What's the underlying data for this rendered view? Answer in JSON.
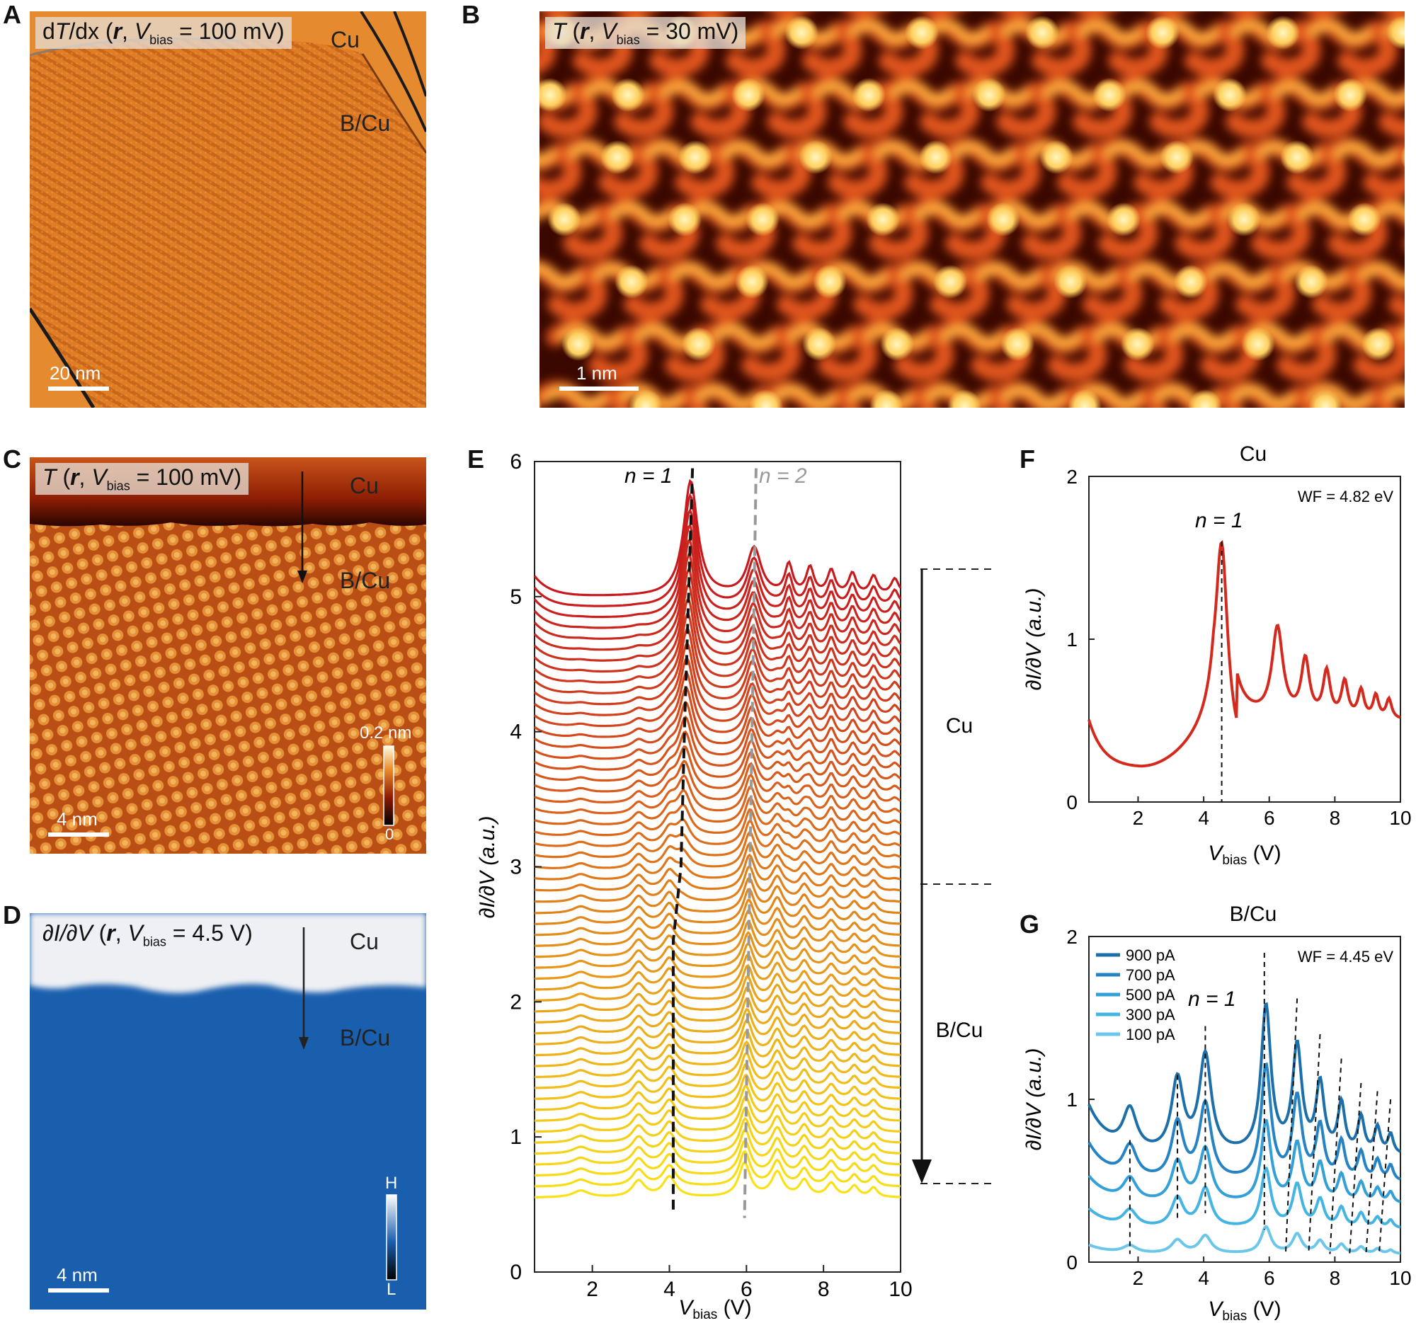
{
  "panel_labels": {
    "A": "A",
    "B": "B",
    "C": "C",
    "D": "D",
    "E": "E",
    "F": "F",
    "G": "G"
  },
  "panelA": {
    "title": "dT/dx (r, Vbias = 100 mV)",
    "t1": "d",
    "t2": "T",
    "t3": "/dx (",
    "t4": "r",
    "t5": ", ",
    "t6": "V",
    "t7": "bias",
    "t8": " = 100 mV)",
    "label_cu": "Cu",
    "label_bcu": "B/Cu",
    "scale": "20 nm",
    "colors": {
      "base": "#e07d24",
      "stripe": "#c86314"
    }
  },
  "panelB": {
    "t1": "T",
    "t2": " (",
    "t3": "r",
    "t4": ", ",
    "t5": "V",
    "t6": "bias",
    "t7": " = 30 mV)",
    "scale": "1 nm",
    "colors": {
      "dark": "#2a0500",
      "mid": "#c2350c",
      "light": "#ffe58a"
    }
  },
  "panelC": {
    "t1": "T",
    "t2": " (",
    "t3": "r",
    "t4": ", ",
    "t5": "V",
    "t6": "bias",
    "t7": " = 100 mV)",
    "label_cu": "Cu",
    "label_bcu": "B/Cu",
    "scale": "4 nm",
    "cbar_top": "0.2 nm",
    "cbar_bottom": "0"
  },
  "panelD": {
    "t1": "∂I/∂V",
    "t2": " (",
    "t3": "r",
    "t4": ", ",
    "t5": "V",
    "t6": "bias",
    "t7": " = 4.5 V)",
    "label_cu": "Cu",
    "label_bcu": "B/Cu",
    "scale": "4 nm",
    "cbar_top": "H",
    "cbar_bottom": "L",
    "colors": {
      "cu": "#eef0f4",
      "bcu": "#1a5fae"
    }
  },
  "panelE": {
    "ylabel": "∂I/∂V (a.u.)",
    "xlabel_v": "V",
    "xlabel_sub": "bias",
    "xlabel_unit": " (V)",
    "n1": "n = 1",
    "n2": "n = 2",
    "region_cu": "Cu",
    "region_bcu": "B/Cu",
    "xticks": [
      2,
      4,
      6,
      8,
      10
    ],
    "yticks": [
      0,
      1,
      2,
      3,
      4,
      5,
      6
    ]
  },
  "panelF": {
    "title": "Cu",
    "wf": "WF = 4.82 eV",
    "n1": "n = 1",
    "ylabel": "∂I/∂V (a.u.)",
    "xlabel_v": "V",
    "xlabel_sub": "bias",
    "xlabel_unit": " (V)",
    "xticks": [
      2,
      4,
      6,
      8,
      10
    ],
    "yticks": [
      0,
      1,
      2
    ]
  },
  "panelG": {
    "title": "B/Cu",
    "wf": "WF = 4.45 eV",
    "n1": "n = 1",
    "ylabel": "∂I/∂V (a.u.)",
    "xlabel_v": "V",
    "xlabel_sub": "bias",
    "xlabel_unit": " (V)",
    "xticks": [
      2,
      4,
      6,
      8,
      10
    ],
    "yticks": [
      0,
      1,
      2
    ],
    "legend": [
      "900 pA",
      "700 pA",
      "500 pA",
      "300 pA",
      "100 pA"
    ],
    "legend_colors": [
      "#1c6fa8",
      "#2684c4",
      "#34a0d8",
      "#44b4e2",
      "#6cc6ea"
    ]
  },
  "chart_data": [
    {
      "type": "line",
      "panel": "E",
      "xlabel": "Vbias (V)",
      "ylabel": "∂I/∂V (a.u.)",
      "xlim": [
        0.5,
        10
      ],
      "ylim": [
        0,
        6
      ],
      "n_curves": 56,
      "n1_peak_x_top": 4.55,
      "n1_peak_x_bottom": 4.1,
      "n2_peak_x_top": 6.2,
      "n2_peak_x_bottom": 5.95,
      "curve_offset_top": 5.0,
      "curve_offset_bottom": 0.55,
      "annotations": [
        "n = 1",
        "n = 2",
        "Cu",
        "B/Cu"
      ]
    },
    {
      "type": "line",
      "panel": "F",
      "title": "Cu",
      "xlabel": "Vbias (V)",
      "ylabel": "∂I/∂V (a.u.)",
      "xlim": [
        0.5,
        10
      ],
      "ylim": [
        0,
        2
      ],
      "series": [
        {
          "name": "Cu",
          "x": [
            0.5,
            1,
            1.5,
            2,
            2.5,
            3,
            3.5,
            4,
            4.3,
            4.55,
            4.8,
            5.2,
            5.5,
            5.8,
            6.2,
            6.6,
            7.1,
            7.5,
            8.0,
            8.4,
            8.8,
            9.2,
            9.6,
            10
          ],
          "y": [
            0.48,
            0.28,
            0.22,
            0.2,
            0.21,
            0.24,
            0.33,
            0.6,
            1.1,
            1.57,
            1.05,
            0.45,
            0.42,
            0.6,
            0.93,
            0.5,
            0.8,
            0.52,
            0.72,
            0.54,
            0.64,
            0.55,
            0.6,
            0.55
          ]
        }
      ],
      "annotations": [
        "WF = 4.82 eV",
        "n = 1"
      ],
      "peak_x": 4.55
    },
    {
      "type": "line",
      "panel": "G",
      "title": "B/Cu",
      "xlabel": "Vbias (V)",
      "ylabel": "∂I/∂V (a.u.)",
      "xlim": [
        0.5,
        10
      ],
      "ylim": [
        0,
        2
      ],
      "series": [
        {
          "name": "900 pA",
          "offset": 0.95
        },
        {
          "name": "700 pA",
          "offset": 0.72
        },
        {
          "name": "500 pA",
          "offset": 0.52
        },
        {
          "name": "300 pA",
          "offset": 0.32
        },
        {
          "name": "100 pA",
          "offset": 0.1
        }
      ],
      "peaks_top": [
        1.75,
        3.2,
        4.05,
        5.85,
        6.85,
        7.55,
        8.2,
        8.8,
        9.3,
        9.7
      ],
      "annotations": [
        "WF = 4.45 eV",
        "n = 1"
      ]
    }
  ]
}
